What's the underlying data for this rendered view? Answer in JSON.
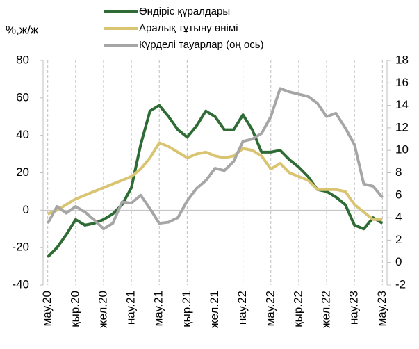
{
  "chart_data": {
    "type": "line",
    "y_label": "%,ж/ж",
    "categories": [
      "мау.20",
      null,
      null,
      "қыр.20",
      null,
      null,
      "жел.20",
      null,
      null,
      "нау.21",
      null,
      null,
      "мау.21",
      null,
      null,
      "қыр.21",
      null,
      null,
      "жел.21",
      null,
      null,
      "нау.22",
      null,
      null,
      "мау.22",
      null,
      null,
      "қыр.22",
      null,
      null,
      "жел.22",
      null,
      null,
      "нау.23",
      null,
      null,
      "мау.23"
    ],
    "series": [
      {
        "name": "Өндіріс құралдары",
        "color": "#2e6b35",
        "axis": "y",
        "values": [
          -25,
          -20,
          -13,
          -5,
          -8,
          -7,
          -5,
          -2,
          3,
          12,
          35,
          53,
          56,
          50,
          43,
          39,
          45,
          53,
          50,
          43,
          43,
          51,
          43,
          31,
          31,
          32,
          27,
          23,
          18,
          11,
          10,
          7,
          3,
          -8,
          -10,
          -4,
          -7
        ]
      },
      {
        "name": "Аралық тұтыну өнімі",
        "color": "#d9c472",
        "axis": "y",
        "values": [
          -2,
          0,
          3,
          6,
          8,
          10,
          12,
          14,
          16,
          18,
          22,
          28,
          36,
          34,
          31,
          28,
          30,
          31,
          29,
          28,
          29,
          33,
          32,
          29,
          22,
          25,
          20,
          18,
          16,
          11,
          11,
          11,
          10,
          3,
          -1,
          -5,
          -5
        ]
      },
      {
        "name": "Күрделі тауарлар (оң ось)",
        "color": "#a6a6a6",
        "axis": "y2",
        "values": [
          3.5,
          5,
          4.4,
          5,
          4.5,
          3.8,
          3,
          3.5,
          5.4,
          5.3,
          6,
          4.8,
          3.5,
          3.6,
          4,
          5.5,
          6.6,
          7.3,
          8.4,
          8.2,
          9,
          10.8,
          11,
          11.5,
          13,
          15.5,
          15.2,
          15,
          14.8,
          14.2,
          13,
          13.3,
          12,
          10.5,
          7,
          6.8,
          5.8
        ]
      }
    ],
    "ylim": [
      -40,
      80
    ],
    "yticks": [
      -40,
      -20,
      0,
      20,
      40,
      60,
      80
    ],
    "y2lim": [
      -2,
      18
    ],
    "y2ticks": [
      -2,
      0,
      2,
      4,
      6,
      8,
      10,
      12,
      14,
      16,
      18
    ],
    "vgrid": true
  }
}
